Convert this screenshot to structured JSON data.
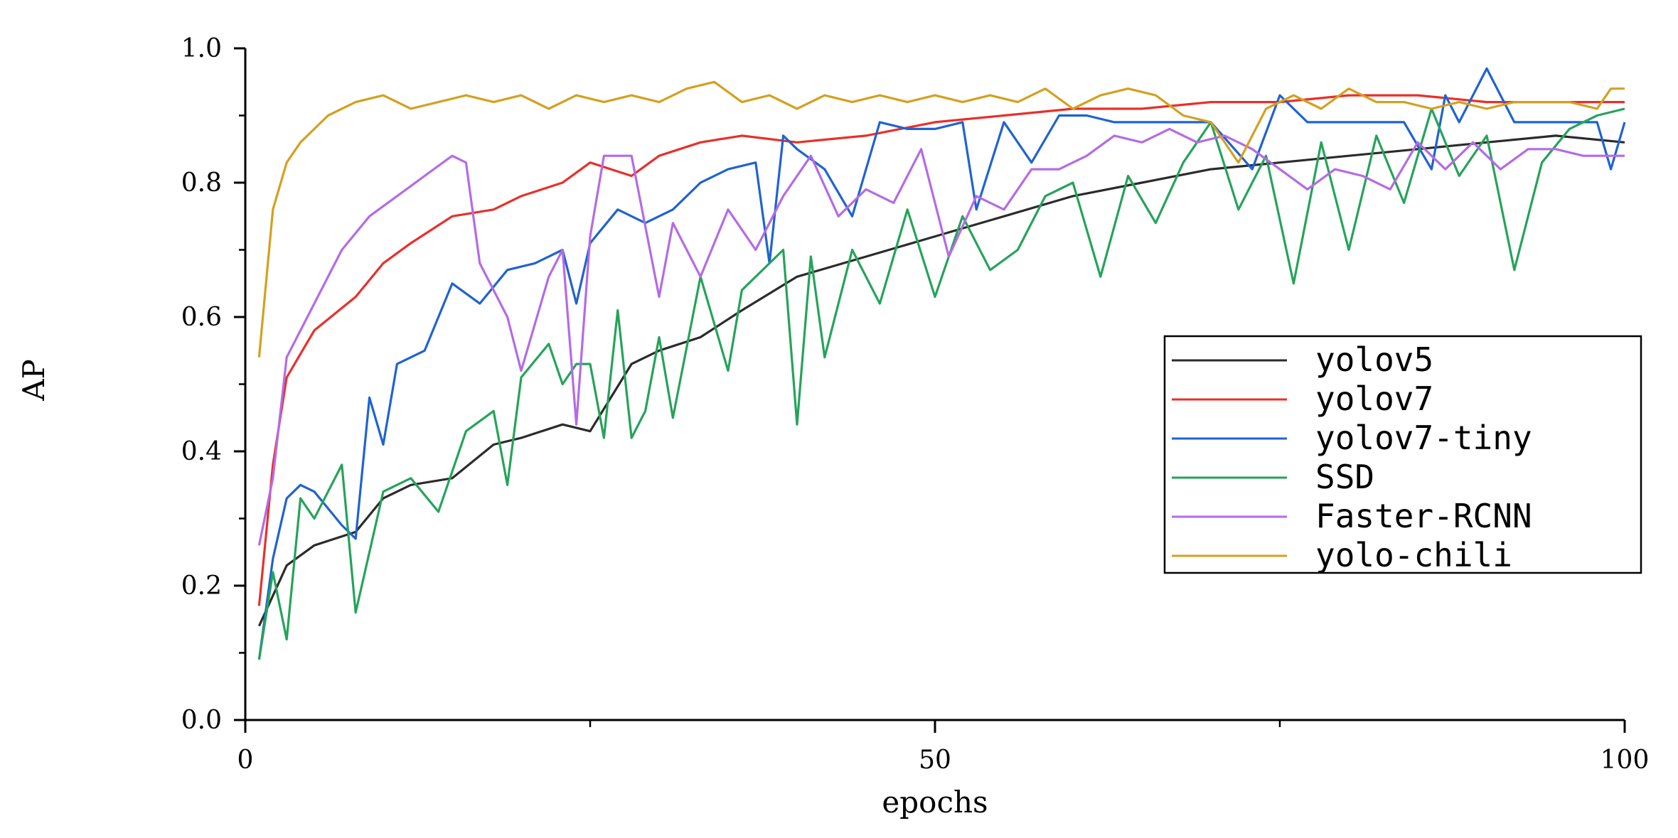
{
  "chart_data": {
    "type": "line",
    "title": "",
    "xlabel": "epochs",
    "ylabel": "AP",
    "xlim": [
      0,
      100
    ],
    "ylim": [
      0.0,
      1.0
    ],
    "x_ticks": [
      0,
      50,
      100
    ],
    "x_tick_labels": [
      "0",
      "50",
      "100"
    ],
    "y_ticks": [
      0.0,
      0.2,
      0.4,
      0.6,
      0.8,
      1.0
    ],
    "y_tick_labels": [
      "0.0",
      "0.2",
      "0.4",
      "0.6",
      "0.8",
      "1.0"
    ],
    "grid": false,
    "legend_position": "center-right",
    "series": [
      {
        "name": "yolov5",
        "color": "#2b2b2b",
        "x": [
          1,
          3,
          5,
          8,
          10,
          12,
          15,
          18,
          20,
          23,
          25,
          28,
          30,
          33,
          36,
          40,
          45,
          50,
          55,
          60,
          65,
          70,
          75,
          80,
          85,
          90,
          95,
          100
        ],
        "y": [
          0.14,
          0.23,
          0.26,
          0.28,
          0.33,
          0.35,
          0.36,
          0.41,
          0.42,
          0.44,
          0.43,
          0.53,
          0.55,
          0.57,
          0.61,
          0.66,
          0.69,
          0.72,
          0.75,
          0.78,
          0.8,
          0.82,
          0.83,
          0.84,
          0.85,
          0.86,
          0.87,
          0.86
        ]
      },
      {
        "name": "yolov7",
        "color": "#e8302a",
        "x": [
          1,
          2,
          3,
          5,
          8,
          10,
          12,
          15,
          18,
          20,
          23,
          25,
          28,
          30,
          33,
          36,
          40,
          45,
          50,
          55,
          60,
          65,
          70,
          75,
          80,
          85,
          90,
          95,
          100
        ],
        "y": [
          0.17,
          0.38,
          0.51,
          0.58,
          0.63,
          0.68,
          0.71,
          0.75,
          0.76,
          0.78,
          0.8,
          0.83,
          0.81,
          0.84,
          0.86,
          0.87,
          0.86,
          0.87,
          0.89,
          0.9,
          0.91,
          0.91,
          0.92,
          0.92,
          0.93,
          0.93,
          0.92,
          0.92,
          0.92
        ]
      },
      {
        "name": "yolov7-tiny",
        "color": "#1f63d0",
        "x": [
          1,
          2,
          3,
          4,
          5,
          7,
          8,
          9,
          10,
          11,
          13,
          15,
          17,
          19,
          21,
          23,
          24,
          25,
          27,
          29,
          31,
          33,
          35,
          37,
          38,
          39,
          40,
          42,
          44,
          46,
          48,
          50,
          52,
          53,
          55,
          57,
          59,
          61,
          63,
          65,
          67,
          70,
          73,
          75,
          77,
          80,
          82,
          84,
          86,
          87,
          88,
          90,
          92,
          94,
          96,
          98,
          99,
          100
        ],
        "y": [
          0.09,
          0.24,
          0.33,
          0.35,
          0.34,
          0.29,
          0.27,
          0.48,
          0.41,
          0.53,
          0.55,
          0.65,
          0.62,
          0.67,
          0.68,
          0.7,
          0.62,
          0.71,
          0.76,
          0.74,
          0.76,
          0.8,
          0.82,
          0.83,
          0.68,
          0.87,
          0.85,
          0.82,
          0.75,
          0.89,
          0.88,
          0.88,
          0.89,
          0.76,
          0.89,
          0.83,
          0.9,
          0.9,
          0.89,
          0.89,
          0.89,
          0.89,
          0.82,
          0.93,
          0.89,
          0.89,
          0.89,
          0.89,
          0.82,
          0.93,
          0.89,
          0.97,
          0.89,
          0.89,
          0.89,
          0.89,
          0.82,
          0.89
        ]
      },
      {
        "name": "SSD",
        "color": "#26a35a",
        "x": [
          1,
          2,
          3,
          4,
          5,
          6,
          7,
          8,
          9,
          10,
          12,
          14,
          16,
          18,
          19,
          20,
          22,
          23,
          24,
          25,
          26,
          27,
          28,
          29,
          30,
          31,
          33,
          35,
          36,
          37,
          39,
          40,
          41,
          42,
          44,
          46,
          48,
          50,
          52,
          54,
          56,
          58,
          60,
          62,
          64,
          66,
          68,
          70,
          72,
          74,
          76,
          78,
          80,
          82,
          84,
          86,
          88,
          90,
          92,
          94,
          96,
          98,
          100
        ],
        "y": [
          0.09,
          0.22,
          0.12,
          0.33,
          0.3,
          0.34,
          0.38,
          0.16,
          0.25,
          0.34,
          0.36,
          0.31,
          0.43,
          0.46,
          0.35,
          0.51,
          0.56,
          0.5,
          0.53,
          0.53,
          0.42,
          0.61,
          0.42,
          0.46,
          0.57,
          0.45,
          0.66,
          0.52,
          0.64,
          0.66,
          0.7,
          0.44,
          0.69,
          0.54,
          0.7,
          0.62,
          0.76,
          0.63,
          0.75,
          0.67,
          0.7,
          0.78,
          0.8,
          0.66,
          0.81,
          0.74,
          0.83,
          0.89,
          0.76,
          0.84,
          0.65,
          0.86,
          0.7,
          0.87,
          0.77,
          0.91,
          0.81,
          0.87,
          0.67,
          0.83,
          0.88,
          0.9,
          0.91
        ]
      },
      {
        "name": "Faster-RCNN",
        "color": "#b46be6",
        "x": [
          1,
          2,
          3,
          5,
          7,
          9,
          11,
          13,
          15,
          16,
          17,
          19,
          20,
          22,
          23,
          24,
          25,
          26,
          27,
          28,
          30,
          31,
          33,
          35,
          37,
          39,
          41,
          43,
          45,
          47,
          49,
          51,
          53,
          55,
          57,
          59,
          61,
          63,
          65,
          67,
          69,
          71,
          73,
          75,
          77,
          79,
          81,
          83,
          85,
          87,
          89,
          91,
          93,
          95,
          97,
          100
        ],
        "y": [
          0.26,
          0.36,
          0.54,
          0.62,
          0.7,
          0.75,
          0.78,
          0.81,
          0.84,
          0.83,
          0.68,
          0.6,
          0.52,
          0.66,
          0.7,
          0.44,
          0.72,
          0.84,
          0.84,
          0.84,
          0.63,
          0.74,
          0.66,
          0.76,
          0.7,
          0.78,
          0.84,
          0.75,
          0.79,
          0.77,
          0.85,
          0.69,
          0.78,
          0.76,
          0.82,
          0.82,
          0.84,
          0.87,
          0.86,
          0.88,
          0.86,
          0.87,
          0.85,
          0.82,
          0.79,
          0.82,
          0.81,
          0.79,
          0.86,
          0.82,
          0.86,
          0.82,
          0.85,
          0.85,
          0.84,
          0.84
        ]
      },
      {
        "name": "yolo-chili",
        "color": "#d4a020",
        "x": [
          1,
          2,
          3,
          4,
          6,
          8,
          10,
          12,
          14,
          16,
          18,
          20,
          22,
          24,
          26,
          28,
          30,
          32,
          34,
          36,
          38,
          40,
          42,
          44,
          46,
          48,
          50,
          52,
          54,
          56,
          58,
          60,
          62,
          64,
          66,
          68,
          70,
          72,
          74,
          76,
          78,
          80,
          82,
          84,
          86,
          88,
          90,
          92,
          94,
          96,
          98,
          99,
          100
        ],
        "y": [
          0.54,
          0.76,
          0.83,
          0.86,
          0.9,
          0.92,
          0.93,
          0.91,
          0.92,
          0.93,
          0.92,
          0.93,
          0.91,
          0.93,
          0.92,
          0.93,
          0.92,
          0.94,
          0.95,
          0.92,
          0.93,
          0.91,
          0.93,
          0.92,
          0.93,
          0.92,
          0.93,
          0.92,
          0.93,
          0.92,
          0.94,
          0.91,
          0.93,
          0.94,
          0.93,
          0.9,
          0.89,
          0.83,
          0.91,
          0.93,
          0.91,
          0.94,
          0.92,
          0.92,
          0.91,
          0.92,
          0.91,
          0.92,
          0.92,
          0.92,
          0.91,
          0.94,
          0.94
        ]
      }
    ]
  }
}
